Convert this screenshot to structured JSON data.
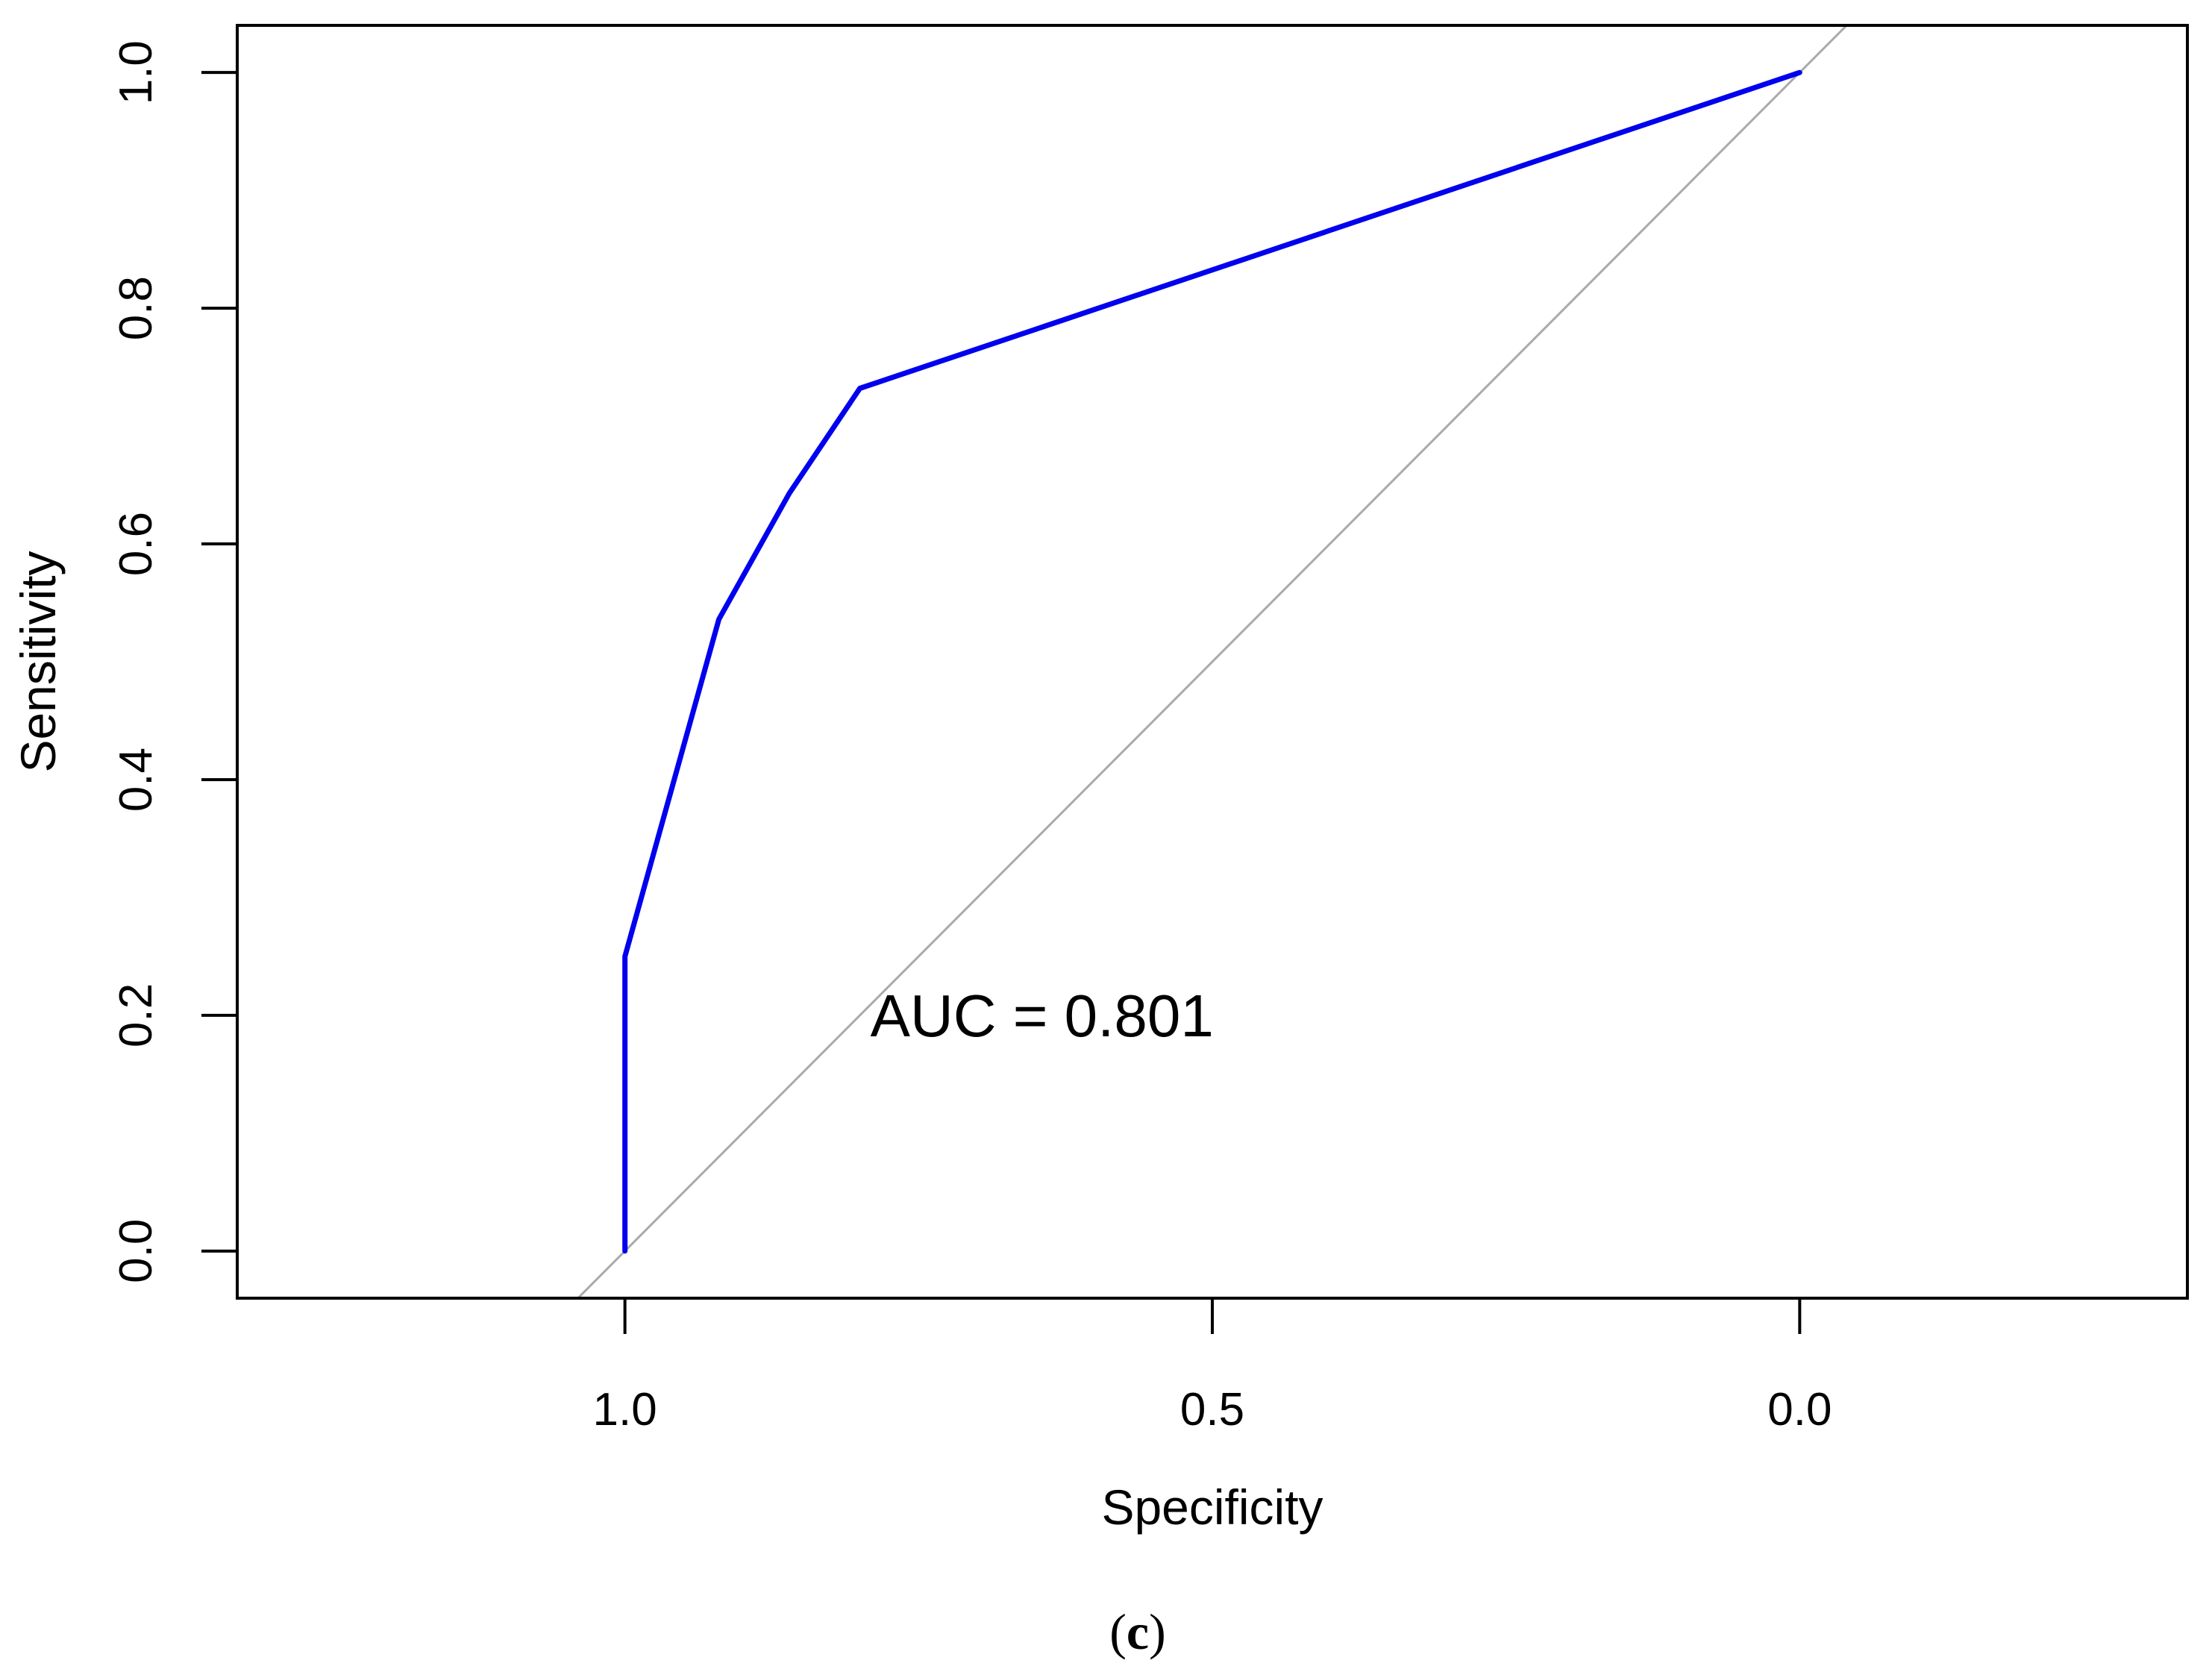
{
  "chart_data": {
    "type": "line",
    "xlabel": "Specificity",
    "ylabel": "Sensitivity",
    "xlim": [
      1.33,
      -0.33
    ],
    "ylim": [
      -0.04,
      1.04
    ],
    "x_reversed": true,
    "grid": false,
    "x_ticks": [
      {
        "value": 1.0,
        "label": "1.0"
      },
      {
        "value": 0.5,
        "label": "0.5"
      },
      {
        "value": 0.0,
        "label": "0.0"
      }
    ],
    "y_ticks": [
      {
        "value": 0.0,
        "label": "0.0"
      },
      {
        "value": 0.2,
        "label": "0.2"
      },
      {
        "value": 0.4,
        "label": "0.4"
      },
      {
        "value": 0.6,
        "label": "0.6"
      },
      {
        "value": 0.8,
        "label": "0.8"
      },
      {
        "value": 1.0,
        "label": "1.0"
      }
    ],
    "series": [
      {
        "color": "#0000ee",
        "x": [
          1.0,
          1.0,
          0.92,
          0.86,
          0.8,
          0.0
        ],
        "y": [
          0.0,
          0.25,
          0.536,
          0.643,
          0.732,
          1.0
        ]
      }
    ],
    "reference_line": {
      "from": [
        1.0,
        0.0
      ],
      "to": [
        0.0,
        1.0
      ],
      "color": "#aaaaaa"
    },
    "annotation": {
      "text": "AUC = 0.801",
      "x": 0.8,
      "y": 0.2
    }
  },
  "caption": {
    "open": "(",
    "letter": "c",
    "close": ")"
  }
}
